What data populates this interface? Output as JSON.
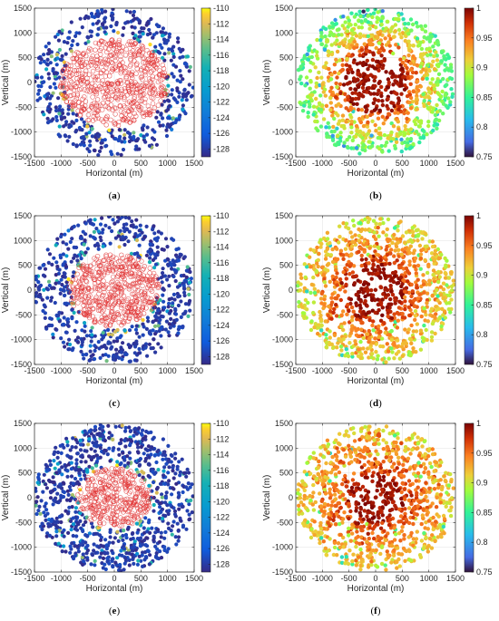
{
  "figure": {
    "captions": [
      "(a)",
      "(b)",
      "(c)",
      "(d)",
      "(e)",
      "(f)"
    ]
  },
  "chart_data": [
    {
      "id": "a",
      "type": "scatter",
      "caption": "(a)",
      "xlabel": "Horizontal (m)",
      "ylabel": "Vertical (m)",
      "xlim": [
        -1500,
        1500
      ],
      "ylim": [
        -1500,
        1500
      ],
      "xticks": [
        -1500,
        -1000,
        -500,
        0,
        500,
        1000,
        1500
      ],
      "yticks": [
        -1500,
        -1000,
        -500,
        0,
        500,
        1000,
        1500
      ],
      "grid": true,
      "colorbar": {
        "colormap": "parula-like",
        "range": [
          -129,
          -110
        ],
        "ticks": [
          -110,
          -112,
          -114,
          -116,
          -118,
          -120,
          -122,
          -124,
          -126,
          -128
        ]
      },
      "series": [
        {
          "marker": "red open circle",
          "region_radius_m": [
            0,
            950
          ],
          "color": "#e03030",
          "approx_points": 600
        },
        {
          "marker": "filled dot colored by value",
          "region_radius_m": [
            950,
            1500
          ],
          "dominant_value": -128,
          "approx_points": 500
        }
      ]
    },
    {
      "id": "b",
      "type": "scatter",
      "caption": "(b)",
      "xlabel": "Horizontal (m)",
      "ylabel": "Vertical (m)",
      "xlim": [
        -1500,
        1500
      ],
      "ylim": [
        -1500,
        1500
      ],
      "xticks": [
        -1500,
        -1000,
        -500,
        0,
        500,
        1000,
        1500
      ],
      "yticks": [
        -1500,
        -1000,
        -500,
        0,
        500,
        1000,
        1500
      ],
      "grid": true,
      "colorbar": {
        "colormap": "turbo-like",
        "range": [
          0.75,
          1
        ],
        "ticks": [
          1,
          0.95,
          0.9,
          0.85,
          0.8,
          0.75
        ]
      },
      "series": [
        {
          "marker": "filled dot colored by value",
          "center_value": 1.0,
          "edge_value": 0.88,
          "core_radius_m": 600
        }
      ]
    },
    {
      "id": "c",
      "type": "scatter",
      "caption": "(c)",
      "xlabel": "Horizontal (m)",
      "ylabel": "Vertical (m)",
      "xlim": [
        -1500,
        1500
      ],
      "ylim": [
        -1500,
        1500
      ],
      "xticks": [
        -1500,
        -1000,
        -500,
        0,
        500,
        1000,
        1500
      ],
      "yticks": [
        -1500,
        -1000,
        -500,
        0,
        500,
        1000,
        1500
      ],
      "grid": true,
      "colorbar": {
        "colormap": "parula-like",
        "range": [
          -129,
          -110
        ],
        "ticks": [
          -110,
          -112,
          -114,
          -116,
          -118,
          -120,
          -122,
          -124,
          -126,
          -128
        ]
      },
      "series": [
        {
          "marker": "red open circle",
          "region_radius_m": [
            0,
            800
          ],
          "color": "#e03030",
          "approx_points": 500
        },
        {
          "marker": "filled dot colored by value",
          "region_radius_m": [
            800,
            1500
          ],
          "dominant_value": -128,
          "approx_points": 650
        }
      ]
    },
    {
      "id": "d",
      "type": "scatter",
      "caption": "(d)",
      "xlabel": "Horizontal (m)",
      "ylabel": "Vertical (m)",
      "xlim": [
        -1500,
        1500
      ],
      "ylim": [
        -1500,
        1500
      ],
      "xticks": [
        -1500,
        -1000,
        -500,
        0,
        500,
        1000,
        1500
      ],
      "yticks": [
        -1500,
        -1000,
        -500,
        0,
        500,
        1000,
        1500
      ],
      "grid": true,
      "colorbar": {
        "colormap": "turbo-like",
        "range": [
          0.75,
          1
        ],
        "ticks": [
          1,
          0.95,
          0.9,
          0.85,
          0.8,
          0.75
        ]
      },
      "series": [
        {
          "marker": "filled dot colored by value",
          "center_value": 1.0,
          "edge_value": 0.93,
          "core_radius_m": 550
        }
      ]
    },
    {
      "id": "e",
      "type": "scatter",
      "caption": "(e)",
      "xlabel": "Horizontal (m)",
      "ylabel": "Vertical (m)",
      "xlim": [
        -1500,
        1500
      ],
      "ylim": [
        -1500,
        1500
      ],
      "xticks": [
        -1500,
        -1000,
        -500,
        0,
        500,
        1000,
        1500
      ],
      "yticks": [
        -1500,
        -1000,
        -500,
        0,
        500,
        1000,
        1500
      ],
      "grid": true,
      "colorbar": {
        "colormap": "parula-like",
        "range": [
          -129,
          -110
        ],
        "ticks": [
          -110,
          -112,
          -114,
          -116,
          -118,
          -120,
          -122,
          -124,
          -126,
          -128
        ]
      },
      "series": [
        {
          "marker": "red open circle",
          "region_radius_m": [
            0,
            650
          ],
          "color": "#e03030",
          "approx_points": 350
        },
        {
          "marker": "filled dot colored by value",
          "region_radius_m": [
            650,
            1500
          ],
          "dominant_value": -128,
          "approx_points": 850
        }
      ]
    },
    {
      "id": "f",
      "type": "scatter",
      "caption": "(f)",
      "xlabel": "Horizontal (m)",
      "ylabel": "Vertical (m)",
      "xlim": [
        -1500,
        1500
      ],
      "ylim": [
        -1500,
        1500
      ],
      "xticks": [
        -1500,
        -1000,
        -500,
        0,
        500,
        1000,
        1500
      ],
      "yticks": [
        -1500,
        -1000,
        -500,
        0,
        500,
        1000,
        1500
      ],
      "grid": true,
      "colorbar": {
        "colormap": "turbo-like",
        "range": [
          0.75,
          1
        ],
        "ticks": [
          1,
          0.95,
          0.9,
          0.85,
          0.8,
          0.75
        ]
      },
      "series": [
        {
          "marker": "filled dot colored by value",
          "center_value": 1.0,
          "edge_value": 0.94,
          "core_radius_m": 500
        }
      ]
    }
  ]
}
